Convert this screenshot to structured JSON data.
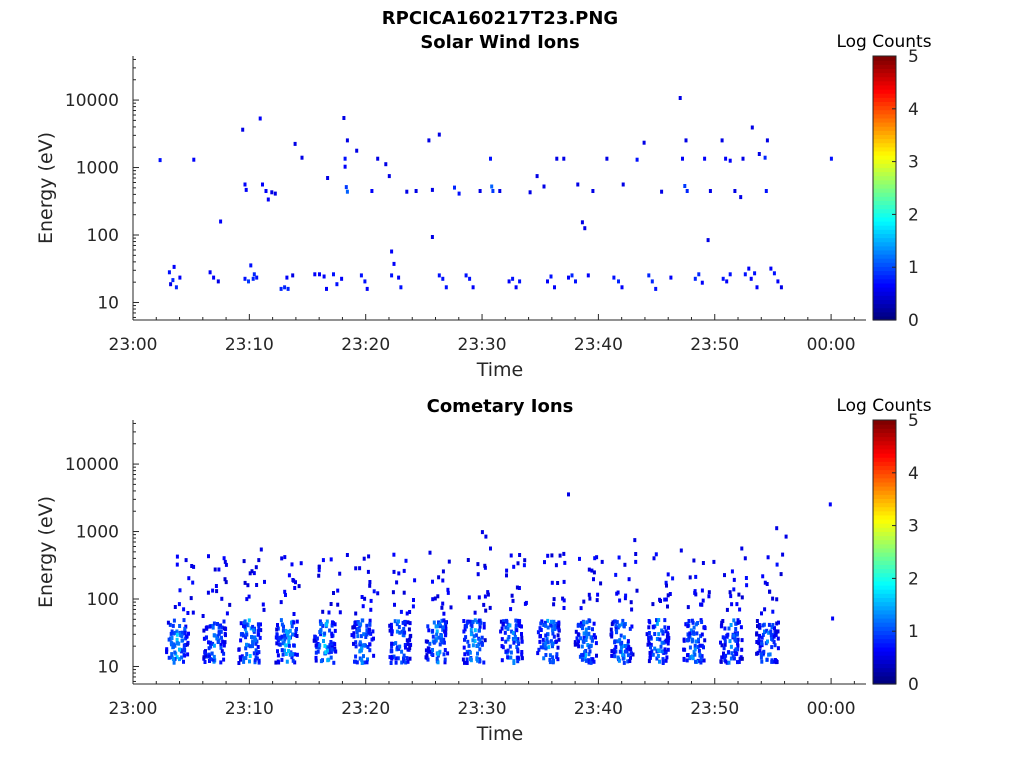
{
  "figure_title": "RPCICA160217T23.PNG",
  "chart_data": [
    {
      "type": "heatmap",
      "title": "Solar Wind Ions",
      "xlabel": "Time",
      "ylabel": "Energy (eV)",
      "x_ticks": [
        "23:00",
        "23:10",
        "23:20",
        "23:30",
        "23:40",
        "23:50",
        "00:00"
      ],
      "x_range_minutes": [
        0,
        63
      ],
      "y_ticks": [
        10,
        100,
        1000,
        10000
      ],
      "y_tick_labels": [
        "10",
        "100",
        "1000",
        "10000"
      ],
      "ylim": [
        5.5,
        45000
      ],
      "y_scale": "log",
      "colorbar": {
        "label": "Log Counts",
        "range": [
          0,
          5
        ],
        "ticks": [
          "0",
          "1",
          "2",
          "3",
          "4",
          "5"
        ],
        "colormap": "jet"
      },
      "cells": [
        [
          2.2,
          1380,
          0.7
        ],
        [
          5.1,
          1400,
          0.6
        ],
        [
          3.0,
          30,
          0.7
        ],
        [
          3.3,
          23,
          0.8
        ],
        [
          3.6,
          18,
          0.8
        ],
        [
          3.4,
          36,
          0.6
        ],
        [
          3.9,
          25,
          0.6
        ],
        [
          3.1,
          20,
          0.5
        ],
        [
          6.5,
          30,
          0.6
        ],
        [
          6.8,
          25,
          0.6
        ],
        [
          7.2,
          22,
          0.5
        ],
        [
          7.4,
          170,
          0.6
        ],
        [
          9.3,
          3900,
          0.5
        ],
        [
          9.5,
          600,
          0.6
        ],
        [
          9.6,
          500,
          0.6
        ],
        [
          9.5,
          24,
          0.7
        ],
        [
          9.8,
          22,
          0.9
        ],
        [
          10.0,
          38,
          0.7
        ],
        [
          10.2,
          24,
          0.8
        ],
        [
          10.5,
          25,
          0.7
        ],
        [
          10.3,
          28,
          0.8
        ],
        [
          10.8,
          5700,
          0.6
        ],
        [
          11.0,
          600,
          0.6
        ],
        [
          11.3,
          480,
          0.6
        ],
        [
          11.5,
          360,
          0.6
        ],
        [
          11.8,
          460,
          0.5
        ],
        [
          12.1,
          440,
          0.5
        ],
        [
          12.6,
          17,
          0.8
        ],
        [
          12.9,
          18,
          0.8
        ],
        [
          13.2,
          17,
          0.8
        ],
        [
          13.1,
          25,
          0.6
        ],
        [
          13.6,
          27,
          0.5
        ],
        [
          13.8,
          2400,
          0.5
        ],
        [
          14.4,
          1500,
          0.5
        ],
        [
          15.5,
          28,
          0.6
        ],
        [
          15.9,
          28,
          0.6
        ],
        [
          16.3,
          26,
          0.6
        ],
        [
          16.5,
          17,
          0.6
        ],
        [
          16.6,
          750,
          0.5
        ],
        [
          17.1,
          28,
          0.7
        ],
        [
          17.4,
          20,
          0.7
        ],
        [
          17.8,
          24,
          0.6
        ],
        [
          18.0,
          5800,
          0.5
        ],
        [
          18.2,
          550,
          0.9
        ],
        [
          18.3,
          470,
          1.1
        ],
        [
          18.1,
          1450,
          0.7
        ],
        [
          18.3,
          2700,
          0.5
        ],
        [
          18.1,
          1100,
          0.6
        ],
        [
          19.1,
          1900,
          0.5
        ],
        [
          19.5,
          27,
          0.7
        ],
        [
          19.8,
          22,
          0.7
        ],
        [
          20.0,
          17,
          0.6
        ],
        [
          20.4,
          480,
          0.6
        ],
        [
          20.9,
          1450,
          0.5
        ],
        [
          21.6,
          1200,
          0.5
        ],
        [
          21.9,
          800,
          0.5
        ],
        [
          22.1,
          61,
          0.6
        ],
        [
          22.3,
          40,
          0.6
        ],
        [
          22.1,
          27,
          0.7
        ],
        [
          22.7,
          25,
          0.6
        ],
        [
          22.9,
          18,
          0.7
        ],
        [
          23.4,
          470,
          0.5
        ],
        [
          24.2,
          480,
          0.5
        ],
        [
          25.3,
          2700,
          0.5
        ],
        [
          25.6,
          100,
          0.5
        ],
        [
          25.6,
          500,
          0.5
        ],
        [
          26.2,
          27,
          0.7
        ],
        [
          26.5,
          24,
          0.7
        ],
        [
          26.8,
          18,
          0.7
        ],
        [
          26.2,
          3300,
          0.5
        ],
        [
          27.5,
          540,
          0.8
        ],
        [
          27.9,
          440,
          0.7
        ],
        [
          28.5,
          27,
          0.7
        ],
        [
          28.8,
          24,
          0.7
        ],
        [
          29.1,
          18,
          0.6
        ],
        [
          29.7,
          480,
          0.5
        ],
        [
          30.6,
          1450,
          0.7
        ],
        [
          30.7,
          560,
          1.1
        ],
        [
          30.8,
          480,
          0.9
        ],
        [
          31.4,
          480,
          0.5
        ],
        [
          32.2,
          22,
          0.6
        ],
        [
          32.5,
          24,
          0.7
        ],
        [
          32.8,
          18,
          0.6
        ],
        [
          33.1,
          22,
          0.7
        ],
        [
          34.0,
          460,
          0.5
        ],
        [
          34.6,
          800,
          0.5
        ],
        [
          35.2,
          560,
          0.5
        ],
        [
          35.5,
          22,
          0.6
        ],
        [
          35.8,
          26,
          0.7
        ],
        [
          36.1,
          18,
          0.6
        ],
        [
          36.3,
          1450,
          0.5
        ],
        [
          36.9,
          1450,
          0.5
        ],
        [
          37.3,
          25,
          0.6
        ],
        [
          37.6,
          27,
          0.8
        ],
        [
          37.9,
          22,
          0.7
        ],
        [
          38.1,
          600,
          0.5
        ],
        [
          38.5,
          165,
          0.5
        ],
        [
          38.7,
          135,
          0.5
        ],
        [
          39.0,
          27,
          0.6
        ],
        [
          39.4,
          480,
          0.5
        ],
        [
          40.6,
          1450,
          0.5
        ],
        [
          41.2,
          25,
          0.7
        ],
        [
          41.6,
          22,
          0.8
        ],
        [
          41.9,
          18,
          0.6
        ],
        [
          42.0,
          600,
          0.5
        ],
        [
          43.2,
          1400,
          0.7
        ],
        [
          43.8,
          2500,
          0.5
        ],
        [
          44.2,
          27,
          0.8
        ],
        [
          44.5,
          22,
          0.8
        ],
        [
          44.8,
          17,
          0.7
        ],
        [
          45.3,
          470,
          0.5
        ],
        [
          46.1,
          25,
          0.6
        ],
        [
          46.9,
          11500,
          0.5
        ],
        [
          47.1,
          1450,
          0.6
        ],
        [
          47.3,
          570,
          0.9
        ],
        [
          47.5,
          480,
          0.8
        ],
        [
          47.4,
          2700,
          0.5
        ],
        [
          48.2,
          24,
          0.8
        ],
        [
          48.5,
          28,
          0.8
        ],
        [
          48.8,
          21,
          0.6
        ],
        [
          49.0,
          1450,
          0.6
        ],
        [
          49.3,
          90,
          0.5
        ],
        [
          49.5,
          480,
          0.5
        ],
        [
          50.6,
          24,
          0.7
        ],
        [
          50.9,
          22,
          0.6
        ],
        [
          51.2,
          28,
          0.7
        ],
        [
          50.5,
          2700,
          0.5
        ],
        [
          50.8,
          1450,
          0.6
        ],
        [
          51.2,
          1350,
          0.6
        ],
        [
          51.6,
          480,
          0.5
        ],
        [
          52.1,
          390,
          0.5
        ],
        [
          52.3,
          1450,
          0.5
        ],
        [
          52.5,
          28,
          0.7
        ],
        [
          52.8,
          34,
          0.6
        ],
        [
          53.0,
          24,
          0.6
        ],
        [
          53.3,
          29,
          0.7
        ],
        [
          53.5,
          18,
          0.6
        ],
        [
          53.1,
          4200,
          0.5
        ],
        [
          53.7,
          1700,
          0.5
        ],
        [
          54.2,
          1500,
          0.8
        ],
        [
          54.3,
          480,
          0.7
        ],
        [
          54.4,
          2700,
          0.5
        ],
        [
          54.7,
          34,
          0.6
        ],
        [
          55.0,
          29,
          0.7
        ],
        [
          55.3,
          22,
          0.6
        ],
        [
          55.6,
          18,
          0.5
        ],
        [
          59.9,
          1450,
          0.7
        ],
        [
          7.5,
          6,
          0.6
        ]
      ]
    },
    {
      "type": "heatmap",
      "title": "Cometary Ions",
      "xlabel": "Time",
      "ylabel": "Energy (eV)",
      "x_ticks": [
        "23:00",
        "23:10",
        "23:20",
        "23:30",
        "23:40",
        "23:50",
        "00:00"
      ],
      "x_range_minutes": [
        0,
        63
      ],
      "y_ticks": [
        10,
        100,
        1000,
        10000
      ],
      "y_tick_labels": [
        "10",
        "100",
        "1000",
        "10000"
      ],
      "ylim": [
        5.5,
        45000
      ],
      "y_scale": "log",
      "colorbar": {
        "label": "Log Counts",
        "range": [
          0,
          5
        ],
        "ticks": [
          "0",
          "1",
          "2",
          "3",
          "4",
          "5"
        ],
        "colormap": "jet"
      },
      "bursts": [
        {
          "center": 3.7,
          "peak": 1.7
        },
        {
          "center": 6.9,
          "peak": 1.5
        },
        {
          "center": 9.9,
          "peak": 1.6
        },
        {
          "center": 13.1,
          "peak": 1.7
        },
        {
          "center": 16.4,
          "peak": 1.7
        },
        {
          "center": 19.6,
          "peak": 1.5
        },
        {
          "center": 22.8,
          "peak": 1.5
        },
        {
          "center": 26.0,
          "peak": 1.6
        },
        {
          "center": 29.2,
          "peak": 1.6
        },
        {
          "center": 32.4,
          "peak": 1.5
        },
        {
          "center": 35.6,
          "peak": 1.6
        },
        {
          "center": 38.8,
          "peak": 1.5
        },
        {
          "center": 41.9,
          "peak": 1.5
        },
        {
          "center": 45.0,
          "peak": 1.5
        },
        {
          "center": 48.1,
          "peak": 1.5
        },
        {
          "center": 51.3,
          "peak": 1.4
        },
        {
          "center": 54.4,
          "peak": 1.4
        }
      ],
      "cells": [
        [
          37.3,
          3800,
          0.5
        ],
        [
          59.8,
          2700,
          0.6
        ],
        [
          60.0,
          55,
          0.6
        ],
        [
          29.9,
          1050,
          0.5
        ],
        [
          30.2,
          900,
          0.5
        ],
        [
          30.6,
          600,
          0.5
        ],
        [
          55.2,
          1200,
          0.5
        ],
        [
          56.0,
          900,
          0.5
        ],
        [
          7.8,
          380,
          0.5
        ],
        [
          10.9,
          580,
          0.5
        ],
        [
          18.3,
          480,
          0.5
        ],
        [
          20.1,
          270,
          0.5
        ],
        [
          25.4,
          520,
          0.5
        ],
        [
          33.1,
          480,
          0.5
        ],
        [
          36.9,
          500,
          0.5
        ],
        [
          40.2,
          380,
          0.5
        ],
        [
          43.0,
          800,
          0.5
        ],
        [
          47.0,
          560,
          0.5
        ],
        [
          49.8,
          380,
          0.5
        ],
        [
          52.2,
          600,
          0.5
        ],
        [
          52.5,
          430,
          0.5
        ],
        [
          22.3,
          270,
          0.5
        ],
        [
          5.9,
          60,
          0.5
        ]
      ]
    }
  ]
}
